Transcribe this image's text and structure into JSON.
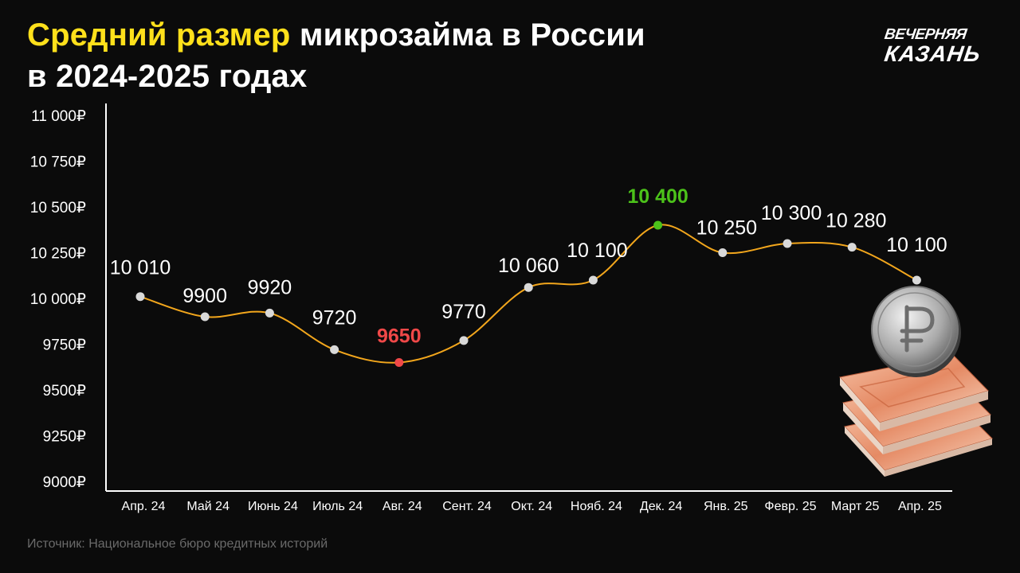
{
  "title": {
    "highlight": "Средний размер",
    "rest": " микрозайма в России",
    "line2": "в 2024-2025 годах"
  },
  "logo": {
    "line1": "ВЕЧЕРНЯЯ",
    "line2": "КАЗАНЬ"
  },
  "source": "Источник: Национальное бюро кредитных историй",
  "colors": {
    "background": "#0b0b0b",
    "title_highlight": "#ffe01b",
    "line": "#f2a61c",
    "point": "#d9d9d9",
    "min": "#f04848",
    "max": "#4cc21a"
  },
  "chart_data": {
    "type": "line",
    "title": "",
    "xlabel": "",
    "ylabel": "",
    "categories": [
      "Апр. 24",
      "Май 24",
      "Июнь 24",
      "Июль 24",
      "Авг. 24",
      "Сент. 24",
      "Окт. 24",
      "Нояб. 24",
      "Дек. 24",
      "Янв. 25",
      "Февр. 25",
      "Март 25",
      "Апр. 25"
    ],
    "values": [
      10010,
      9900,
      9920,
      9720,
      9650,
      9770,
      10060,
      10100,
      10400,
      10250,
      10300,
      10280,
      10100
    ],
    "value_labels": [
      "10 010",
      "9900",
      "9920",
      "9720",
      "9650",
      "9770",
      "10 060",
      "10 100",
      "10 400",
      "10 250",
      "10 300",
      "10 280",
      "10 100"
    ],
    "highlight": {
      "min_index": 4,
      "max_index": 8
    },
    "ylim": [
      9000,
      11000
    ],
    "yticks": [
      9000,
      9250,
      9500,
      9750,
      10000,
      10250,
      10500,
      10750,
      11000
    ],
    "ytick_labels": [
      "9000₽",
      "9250₽",
      "9500₽",
      "9750₽",
      "10 000₽",
      "10 250₽",
      "10 500₽",
      "10 750₽",
      "11 000₽"
    ],
    "grid": false,
    "legend": "none"
  }
}
